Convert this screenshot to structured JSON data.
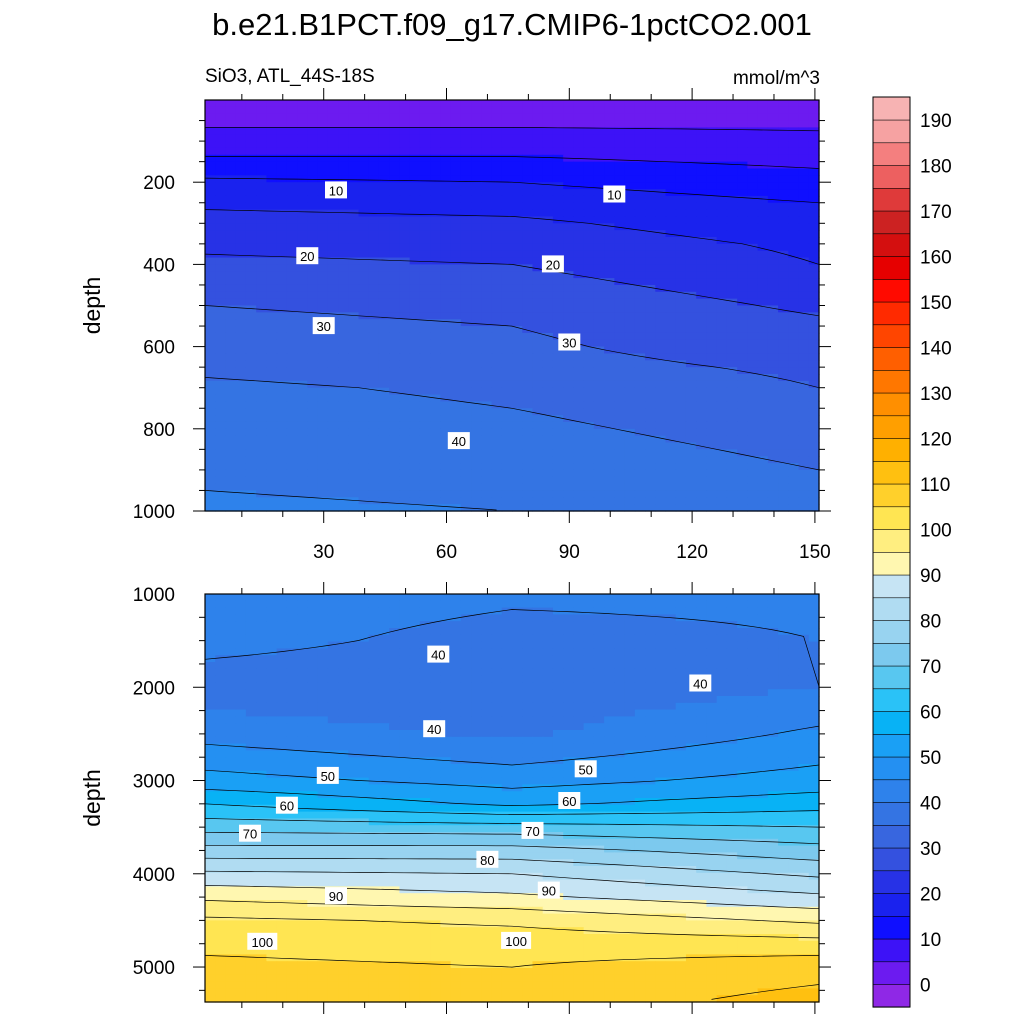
{
  "chart_data": {
    "type": "contour",
    "title": "b.e21.B1PCT.f09_g17.CMIP6-1pctCO2.001",
    "variable_label": "SiO3, ATL_44S-18S",
    "units": "mmol/m^3",
    "colorbar": {
      "labels": [
        "0",
        "10",
        "20",
        "30",
        "40",
        "50",
        "60",
        "70",
        "80",
        "90",
        "100",
        "110",
        "120",
        "130",
        "140",
        "150",
        "160",
        "170",
        "180",
        "190"
      ],
      "levels": [
        -5,
        0,
        5,
        10,
        15,
        20,
        25,
        30,
        35,
        40,
        45,
        50,
        55,
        60,
        65,
        70,
        75,
        80,
        85,
        90,
        95,
        100,
        105,
        110,
        115,
        120,
        125,
        130,
        135,
        140,
        145,
        150,
        155,
        160,
        165,
        170,
        175,
        180,
        185,
        190,
        195
      ],
      "colors": [
        "#8f28e6",
        "#6c1bf0",
        "#3d12f7",
        "#0f0fff",
        "#1a22ee",
        "#2732e6",
        "#3451df",
        "#3866df",
        "#3474e3",
        "#2e82eb",
        "#2490f2",
        "#1aa0f5",
        "#08b2f5",
        "#2ac2f7",
        "#58c7f0",
        "#7cc9ee",
        "#98d3f0",
        "#b0dcf2",
        "#c6e4f4",
        "#fff7b0",
        "#ffee80",
        "#ffe552",
        "#ffd02b",
        "#ffc010",
        "#ffb000",
        "#ff9f00",
        "#ff8f00",
        "#ff7700",
        "#ff5f00",
        "#ff4500",
        "#ff2a00",
        "#ff0a00",
        "#e60000",
        "#d40f0f",
        "#cc2222",
        "#df3a3a",
        "#ed6060",
        "#f47f7f",
        "#f6a2a2",
        "#f7b3b3"
      ]
    },
    "panels": [
      {
        "name": "upper",
        "ylabel": "depth",
        "xlim": [
          1,
          151
        ],
        "ylim": [
          0,
          1000
        ],
        "y_reversed": true,
        "xticks": [
          30,
          60,
          90,
          120,
          150
        ],
        "xtick_labels": [
          "30",
          "60",
          "90",
          "120",
          "150"
        ],
        "yticks": [
          200,
          400,
          600,
          800,
          1000
        ],
        "ytick_labels": [
          "200",
          "400",
          "600",
          "800",
          "1000"
        ],
        "depth_values": [
          0,
          50,
          100,
          150,
          200,
          250,
          300,
          350,
          400,
          450,
          500,
          550,
          600,
          650,
          700,
          750,
          800,
          850,
          900,
          950,
          1000
        ],
        "series": [
          {
            "name": "x = 1",
            "values": [
              2,
              4,
              7,
              11,
              16,
              19,
              22,
              24,
              26,
              28,
              30,
              31,
              33,
              34,
              36,
              37,
              38,
              39,
              40,
              40,
              41
            ]
          },
          {
            "name": "x = 75",
            "values": [
              2,
              4,
              7,
              11,
              15,
              18,
              21,
              23,
              25,
              27,
              29,
              30,
              31,
              32,
              34,
              35,
              36,
              37,
              38,
              39,
              40
            ]
          },
          {
            "name": "x = 151",
            "values": [
              2,
              4,
              6,
              9,
              12,
              15,
              17,
              19,
              20,
              22,
              24,
              26,
              27,
              29,
              30,
              32,
              33,
              34,
              35,
              36,
              37
            ]
          }
        ],
        "contour_labels": [
          {
            "text": "10",
            "x": 33,
            "depth": 220
          },
          {
            "text": "10",
            "x": 101,
            "depth": 230
          },
          {
            "text": "20",
            "x": 26,
            "depth": 380
          },
          {
            "text": "20",
            "x": 86,
            "depth": 400
          },
          {
            "text": "30",
            "x": 30,
            "depth": 550
          },
          {
            "text": "30",
            "x": 90,
            "depth": 590
          },
          {
            "text": "40",
            "x": 63,
            "depth": 830
          }
        ]
      },
      {
        "name": "lower",
        "ylabel": "depth",
        "xlim": [
          1,
          151
        ],
        "ylim": [
          1000,
          5375
        ],
        "y_reversed": true,
        "xticks": [
          30,
          60,
          90,
          120,
          150
        ],
        "xtick_labels": [
          "",
          "",
          "",
          "",
          ""
        ],
        "yticks": [
          1000,
          2000,
          3000,
          4000,
          5000
        ],
        "ytick_labels": [
          "1000",
          "2000",
          "3000",
          "4000",
          "5000"
        ],
        "depth_values": [
          1000,
          1500,
          2000,
          2500,
          3000,
          3250,
          3500,
          3750,
          4000,
          4250,
          4500,
          4750,
          5000,
          5375
        ],
        "series": [
          {
            "name": "x = 1",
            "values": [
              43,
              42,
              37,
              43,
              52,
              60,
              68,
              77,
              86,
              94,
              101,
              104,
              106,
              107
            ]
          },
          {
            "name": "x = 75",
            "values": [
              41,
              38,
              36,
              39,
              48,
              54,
              67,
              77,
              85,
              91,
              99,
              103,
              105,
              107
            ]
          },
          {
            "name": "x = 151",
            "values": [
              41,
              40,
              40,
              46,
              52,
              58,
              65,
              72,
              79,
              86,
              94,
              102,
              108,
              112
            ]
          }
        ],
        "contour_labels": [
          {
            "text": "40",
            "x": 58,
            "depth": 1650
          },
          {
            "text": "40",
            "x": 122,
            "depth": 1960
          },
          {
            "text": "40",
            "x": 57,
            "depth": 2450
          },
          {
            "text": "50",
            "x": 31,
            "depth": 2950
          },
          {
            "text": "50",
            "x": 94,
            "depth": 2880
          },
          {
            "text": "60",
            "x": 21,
            "depth": 3270
          },
          {
            "text": "60",
            "x": 90,
            "depth": 3220
          },
          {
            "text": "70",
            "x": 12,
            "depth": 3570
          },
          {
            "text": "70",
            "x": 81,
            "depth": 3540
          },
          {
            "text": "80",
            "x": 70,
            "depth": 3850
          },
          {
            "text": "90",
            "x": 33,
            "depth": 4240
          },
          {
            "text": "90",
            "x": 85,
            "depth": 4180
          },
          {
            "text": "100",
            "x": 15,
            "depth": 4730
          },
          {
            "text": "100",
            "x": 77,
            "depth": 4720
          }
        ]
      }
    ]
  }
}
